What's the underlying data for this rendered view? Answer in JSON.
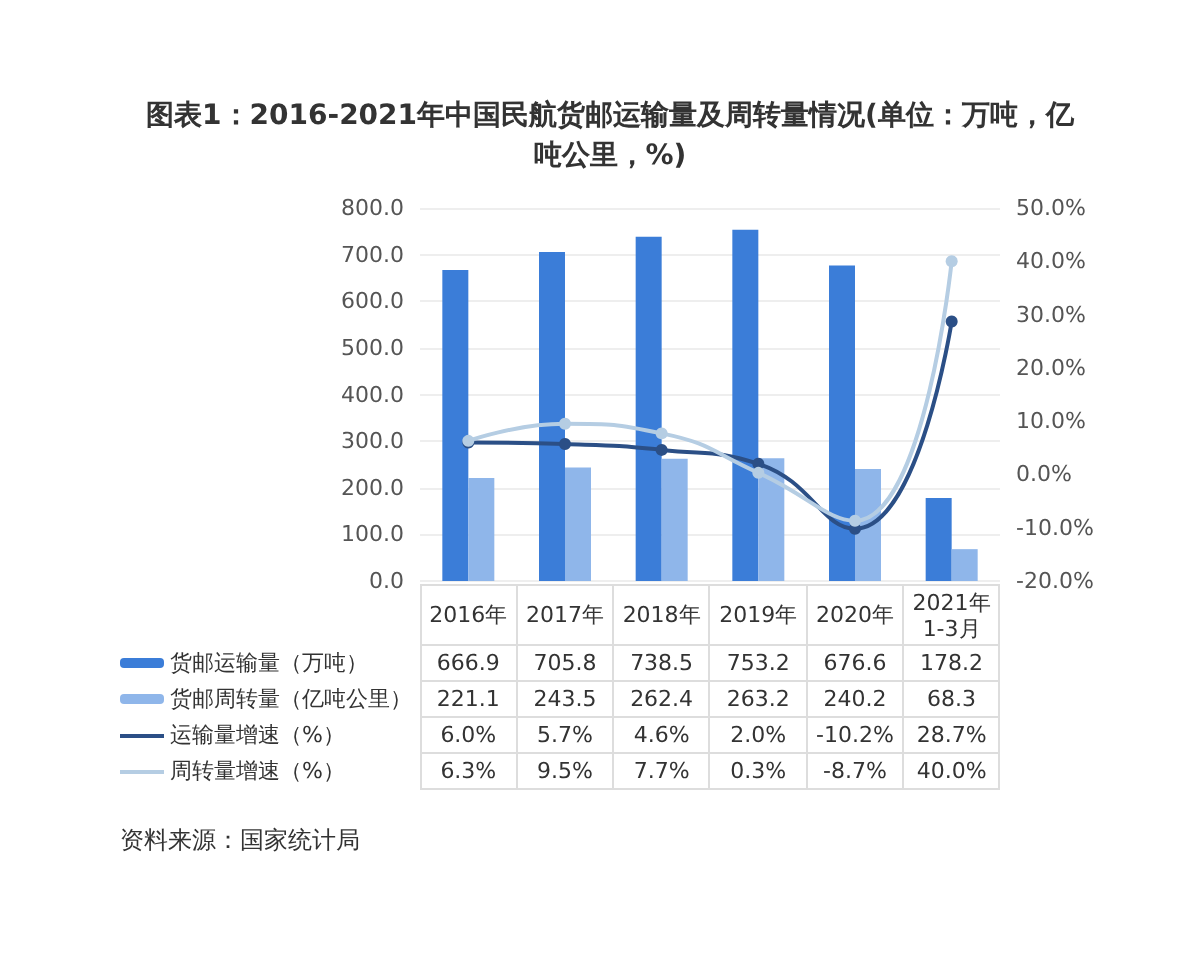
{
  "chart_data": {
    "type": "bar",
    "title": "图表1：2016-2021年中国民航货邮运输量及周转量情况(单位：万吨，亿吨公里，%)",
    "categories": [
      "2016年",
      "2017年",
      "2018年",
      "2019年",
      "2020年",
      "2021年1-3月"
    ],
    "series": [
      {
        "name": "货邮运输量（万吨）",
        "color": "#3b7dd8",
        "values": [
          666.9,
          705.8,
          738.5,
          753.2,
          676.6,
          178.2
        ],
        "value_labels": [
          "666.9",
          "705.8",
          "738.5",
          "753.2",
          "676.6",
          "178.2"
        ]
      },
      {
        "name": "货邮周转量（亿吨公里）",
        "color": "#8fb6ea",
        "values": [
          221.1,
          243.5,
          262.4,
          263.2,
          240.2,
          68.3
        ],
        "value_labels": [
          "221.1",
          "243.5",
          "262.4",
          "263.2",
          "240.2",
          "68.3"
        ]
      },
      {
        "name": "运输量增速（%）",
        "type": "line",
        "axis": "y2",
        "color": "#2b4f86",
        "marker": "circle",
        "values": [
          6.0,
          5.7,
          4.6,
          2.0,
          -10.2,
          28.7
        ],
        "value_labels": [
          "6.0%",
          "5.7%",
          "4.6%",
          "2.0%",
          "-10.2%",
          "28.7%"
        ]
      },
      {
        "name": "周转量增速（%）",
        "type": "line",
        "axis": "y2",
        "color": "#b5cde3",
        "marker": "circle",
        "values": [
          6.3,
          9.5,
          7.7,
          0.3,
          -8.7,
          40.0
        ],
        "value_labels": [
          "6.3%",
          "9.5%",
          "7.7%",
          "0.3%",
          "-8.7%",
          "40.0%"
        ]
      }
    ],
    "ylim": [
      0,
      800
    ],
    "yticks": [
      {
        "value": 0,
        "label": "0.0"
      },
      {
        "value": 100,
        "label": "100.0"
      },
      {
        "value": 200,
        "label": "200.0"
      },
      {
        "value": 300,
        "label": "300.0"
      },
      {
        "value": 400,
        "label": "400.0"
      },
      {
        "value": 500,
        "label": "500.0"
      },
      {
        "value": 600,
        "label": "600.0"
      },
      {
        "value": 700,
        "label": "700.0"
      },
      {
        "value": 800,
        "label": "800.0"
      }
    ],
    "y2lim": [
      -20,
      50
    ],
    "y2ticks": [
      {
        "value": -20,
        "label": "-20.0%"
      },
      {
        "value": -10,
        "label": "-10.0%"
      },
      {
        "value": 0,
        "label": "0.0%"
      },
      {
        "value": 10,
        "label": "10.0%"
      },
      {
        "value": 20,
        "label": "20.0%"
      },
      {
        "value": 30,
        "label": "30.0%"
      },
      {
        "value": 40,
        "label": "40.0%"
      },
      {
        "value": 50,
        "label": "50.0%"
      }
    ],
    "grid": "y",
    "legend": "bottom",
    "annotations": [
      "资料来源：国家统计局"
    ]
  }
}
